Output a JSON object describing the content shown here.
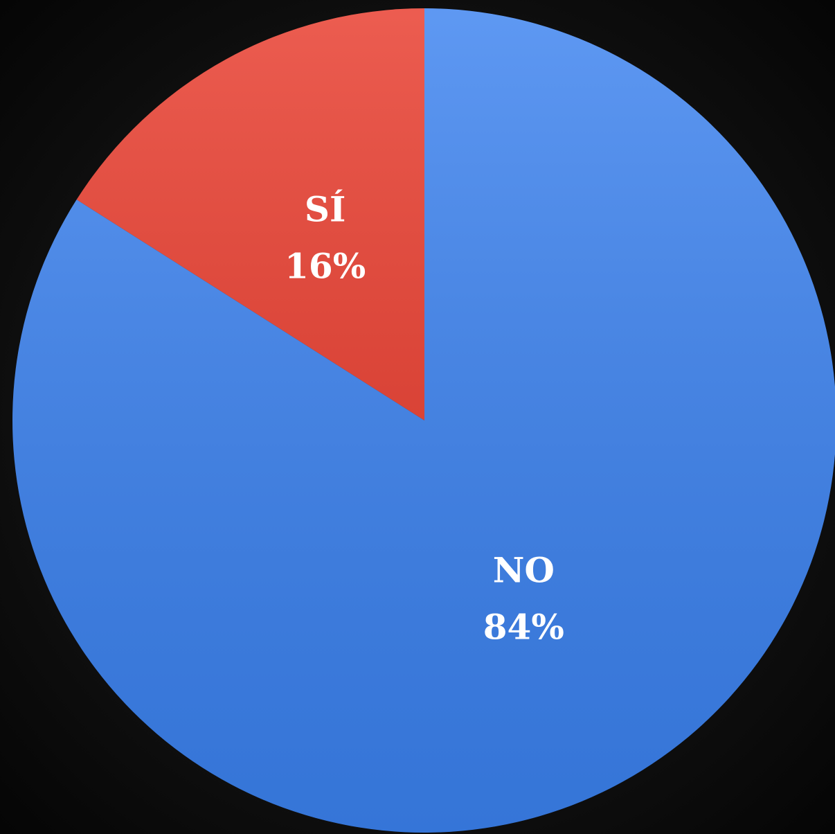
{
  "chart_data": {
    "type": "pie",
    "categories": [
      "SÍ",
      "NO"
    ],
    "values": [
      16,
      84
    ],
    "value_labels": [
      "16%",
      "84%"
    ],
    "colors": [
      "#e8392a",
      "#3b82f0"
    ]
  }
}
